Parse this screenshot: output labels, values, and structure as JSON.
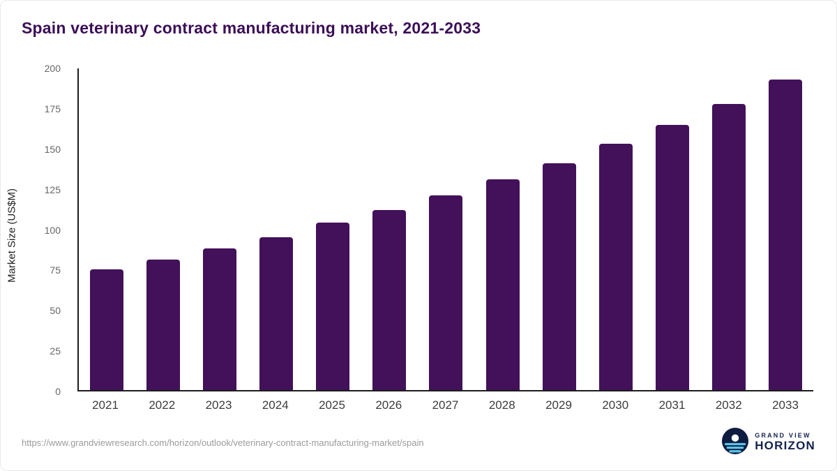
{
  "page": {
    "title": "Spain veterinary contract manufacturing market, 2021-2033",
    "source_url": "https://www.grandviewresearch.com/horizon/outlook/veterinary-contract-manufacturing-market/spain"
  },
  "logo": {
    "line1": "GRAND VIEW",
    "line2": "HORIZON",
    "icon": "horizon-sun-icon",
    "icon_bg": "#0e1c3f",
    "icon_sun": "#ffffff",
    "icon_lines": "#59c4e9",
    "text_color": "#13224e"
  },
  "colors": {
    "bar": "#421159",
    "title": "#3b0e57",
    "axis": "#1c1c1c",
    "y_tick": "#666666",
    "x_tick": "#3c3c3c"
  },
  "chart_data": {
    "type": "bar",
    "title": "Spain veterinary contract manufacturing market, 2021-2033",
    "categories": [
      "2021",
      "2022",
      "2023",
      "2024",
      "2025",
      "2026",
      "2027",
      "2028",
      "2029",
      "2030",
      "2031",
      "2032",
      "2033"
    ],
    "values": [
      75,
      81,
      88,
      95,
      104,
      112,
      121,
      131,
      141,
      153,
      165,
      178,
      193
    ],
    "xlabel": "",
    "ylabel": "Market Size (US$M)",
    "ylim": [
      0,
      200
    ],
    "yticks": [
      0,
      25,
      50,
      75,
      100,
      125,
      150,
      175,
      200
    ],
    "grid": false,
    "legend": "none",
    "bar_color": "#421159"
  }
}
